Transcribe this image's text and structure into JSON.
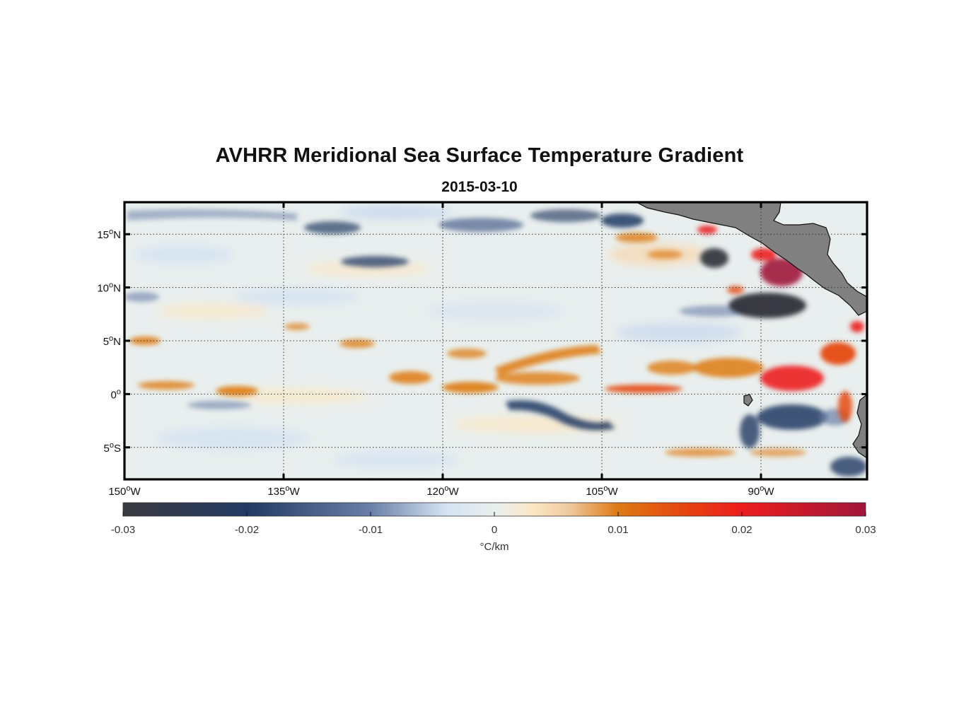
{
  "title": "AVHRR Meridional Sea Surface Temperature Gradient",
  "subtitle": "2015-03-10",
  "chart_data": {
    "type": "heatmap",
    "title": "AVHRR Meridional Sea Surface Temperature Gradient",
    "subtitle": "2015-03-10",
    "lon_range": [
      -150,
      -80
    ],
    "lat_range": [
      -8,
      18
    ],
    "lon_ticks": [
      {
        "value": -150,
        "deg": "150",
        "dir": "W"
      },
      {
        "value": -135,
        "deg": "135",
        "dir": "W"
      },
      {
        "value": -120,
        "deg": "120",
        "dir": "W"
      },
      {
        "value": -105,
        "deg": "105",
        "dir": "W"
      },
      {
        "value": -90,
        "deg": "90",
        "dir": "W"
      }
    ],
    "lat_ticks": [
      {
        "value": 15,
        "deg": "15",
        "dir": "N"
      },
      {
        "value": 10,
        "deg": "10",
        "dir": "N"
      },
      {
        "value": 5,
        "deg": "5",
        "dir": "N"
      },
      {
        "value": 0,
        "deg": "0",
        "dir": ""
      },
      {
        "value": -5,
        "deg": "5",
        "dir": "S"
      }
    ],
    "grid": true,
    "colorbar": {
      "range": [
        -0.03,
        0.03
      ],
      "ticks": [
        -0.03,
        -0.02,
        -0.01,
        0,
        0.01,
        0.02,
        0.03
      ],
      "tick_labels": [
        "-0.03",
        "-0.02",
        "-0.01",
        "0",
        "0.01",
        "0.02",
        "0.03"
      ],
      "label": "°C/km",
      "stops": [
        {
          "value": -0.03,
          "color": "#3a3a3f"
        },
        {
          "value": -0.02,
          "color": "#223a63"
        },
        {
          "value": -0.01,
          "color": "#6b7fa8"
        },
        {
          "value": -0.004,
          "color": "#d3e2f3"
        },
        {
          "value": 0,
          "color": "#e9efee"
        },
        {
          "value": 0.003,
          "color": "#fbe7c6"
        },
        {
          "value": 0.006,
          "color": "#f0c9a0"
        },
        {
          "value": 0.01,
          "color": "#de7a12"
        },
        {
          "value": 0.015,
          "color": "#e5480f"
        },
        {
          "value": 0.02,
          "color": "#ec1c1c"
        },
        {
          "value": 0.03,
          "color": "#a0163a"
        }
      ]
    },
    "features": [
      {
        "name": "equatorial warm band",
        "lon": [
          -150,
          -82
        ],
        "lat": [
          -0.5,
          4
        ],
        "value": 0.012
      },
      {
        "name": "ITCZ warm band",
        "lon": [
          -150,
          -128
        ],
        "lat": [
          4,
          5.5
        ],
        "value": 0.008
      },
      {
        "name": "equatorial cold tongue",
        "lon": [
          -110,
          -100
        ],
        "lat": [
          -3,
          -1.5
        ],
        "value": -0.02
      },
      {
        "name": "Galapagos cold anomaly",
        "lon": [
          -90,
          -85
        ],
        "lat": [
          -4,
          -1
        ],
        "value": -0.025
      },
      {
        "name": "Gulf of Papagayo cold eddy",
        "lon": [
          -93,
          -88
        ],
        "lat": [
          6,
          9
        ],
        "value": -0.03
      },
      {
        "name": "Central America coastal warm anomaly",
        "lon": [
          -91,
          -86
        ],
        "lat": [
          10,
          13
        ],
        "value": 0.028
      },
      {
        "name": "Panama Bight warm anomaly",
        "lon": [
          -89,
          -82
        ],
        "lat": [
          0,
          4
        ],
        "value": 0.02
      }
    ]
  }
}
